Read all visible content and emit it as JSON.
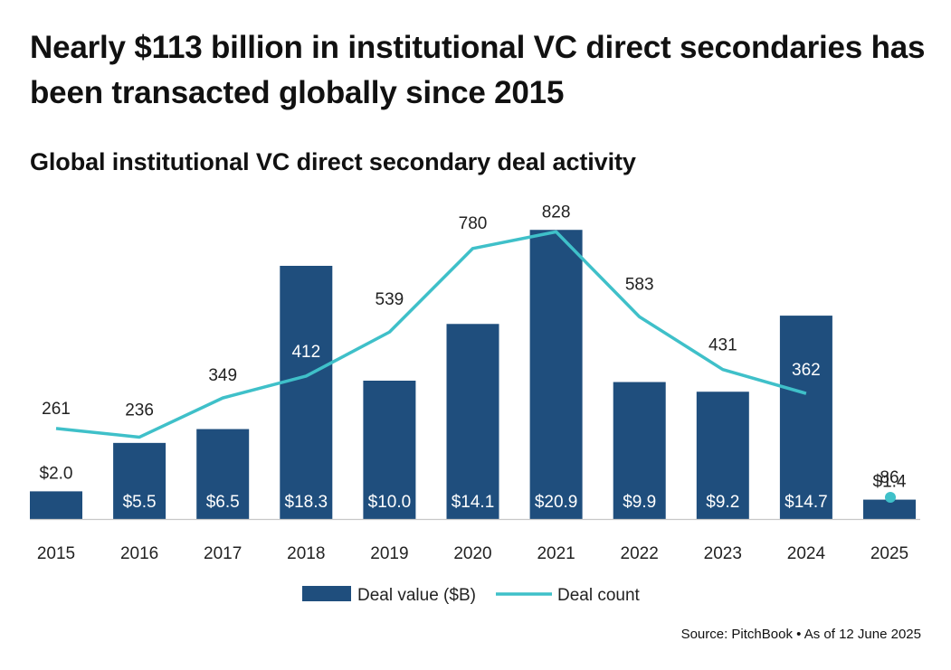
{
  "header": {
    "headline": "Nearly $113 billion in institutional VC direct secondaries has been transacted globally since 2015",
    "subtitle": "Global institutional VC direct secondary deal activity"
  },
  "chart_data": {
    "type": "bar",
    "title": "Global institutional VC direct secondary deal activity",
    "categories": [
      "2015",
      "2016",
      "2017",
      "2018",
      "2019",
      "2020",
      "2021",
      "2022",
      "2023",
      "2024",
      "2025"
    ],
    "series": [
      {
        "name": "Deal value ($B)",
        "type": "bar",
        "values": [
          2.0,
          5.5,
          6.5,
          18.3,
          10.0,
          14.1,
          20.9,
          9.9,
          9.2,
          14.7,
          1.4
        ],
        "labels": [
          "$2.0",
          "$5.5",
          "$6.5",
          "$18.3",
          "$10.0",
          "$14.1",
          "$20.9",
          "$9.9",
          "$9.2",
          "$14.7",
          "$1.4"
        ],
        "color": "#1f4e7d"
      },
      {
        "name": "Deal count",
        "type": "line",
        "values": [
          261,
          236,
          349,
          412,
          539,
          780,
          828,
          583,
          431,
          362,
          86
        ],
        "labels": [
          "261",
          "236",
          "349",
          "412",
          "539",
          "780",
          "828",
          "583",
          "431",
          "362",
          "86"
        ],
        "color": "#3fc0c9",
        "partial_last_point": true
      }
    ],
    "legend": [
      "Deal value ($B)",
      "Deal count"
    ],
    "legend_position": "bottom-center",
    "grid": false
  },
  "source": "Source: PitchBook  •  As of 12 June 2025"
}
